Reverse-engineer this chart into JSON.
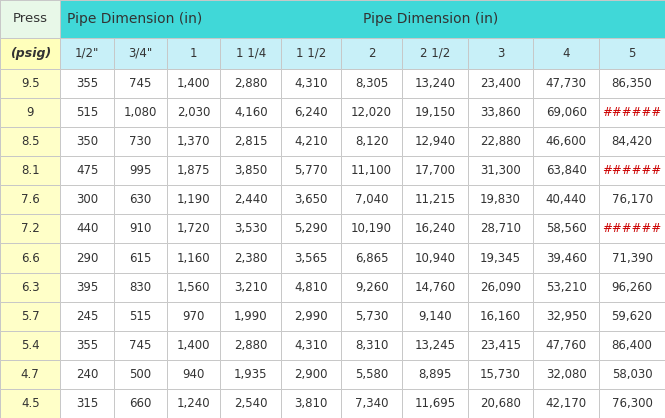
{
  "title_left": "Press",
  "title_right": "Pipe Dimension (in)",
  "col_headers": [
    "(psig)",
    "1/2\"",
    "3/4\"",
    "1",
    "1 1/4",
    "1 1/2",
    "2",
    "2 1/2",
    "3",
    "4",
    "5"
  ],
  "rows": [
    [
      "9.5",
      "355",
      "745",
      "1,400",
      "2,880",
      "4,310",
      "8,305",
      "13,240",
      "23,400",
      "47,730",
      "86,350"
    ],
    [
      "9",
      "515",
      "1,080",
      "2,030",
      "4,160",
      "6,240",
      "12,020",
      "19,150",
      "33,860",
      "69,060",
      "######"
    ],
    [
      "8.5",
      "350",
      "730",
      "1,370",
      "2,815",
      "4,210",
      "8,120",
      "12,940",
      "22,880",
      "46,600",
      "84,420"
    ],
    [
      "8.1",
      "475",
      "995",
      "1,875",
      "3,850",
      "5,770",
      "11,100",
      "17,700",
      "31,300",
      "63,840",
      "######"
    ],
    [
      "7.6",
      "300",
      "630",
      "1,190",
      "2,440",
      "3,650",
      "7,040",
      "11,215",
      "19,830",
      "40,440",
      "76,170"
    ],
    [
      "7.2",
      "440",
      "910",
      "1,720",
      "3,530",
      "5,290",
      "10,190",
      "16,240",
      "28,710",
      "58,560",
      "######"
    ],
    [
      "6.6",
      "290",
      "615",
      "1,160",
      "2,380",
      "3,565",
      "6,865",
      "10,940",
      "19,345",
      "39,460",
      "71,390"
    ],
    [
      "6.3",
      "395",
      "830",
      "1,560",
      "3,210",
      "4,810",
      "9,260",
      "14,760",
      "26,090",
      "53,210",
      "96,260"
    ],
    [
      "5.7",
      "245",
      "515",
      "970",
      "1,990",
      "2,990",
      "5,730",
      "9,140",
      "16,160",
      "32,950",
      "59,620"
    ],
    [
      "5.4",
      "355",
      "745",
      "1,400",
      "2,880",
      "4,310",
      "8,310",
      "13,245",
      "23,415",
      "47,760",
      "86,400"
    ],
    [
      "4.7",
      "240",
      "500",
      "940",
      "1,935",
      "2,900",
      "5,580",
      "8,895",
      "15,730",
      "32,080",
      "58,030"
    ],
    [
      "4.5",
      "315",
      "660",
      "1,240",
      "2,540",
      "3,810",
      "7,340",
      "11,695",
      "20,680",
      "42,170",
      "76,300"
    ]
  ],
  "color_header_top_press": "#E8F8E8",
  "color_header_top_pipe": "#40D8D8",
  "color_subheader_press": "#FFFFBB",
  "color_subheader_pipe": "#C8F0F8",
  "color_data_press": "#FFFFC8",
  "color_data_cells": "#FFFFFF",
  "color_border": "#C8C8C8",
  "color_text": "#333333",
  "color_hash": "#CC0000",
  "fig_width": 6.65,
  "fig_height": 4.18,
  "dpi": 100
}
